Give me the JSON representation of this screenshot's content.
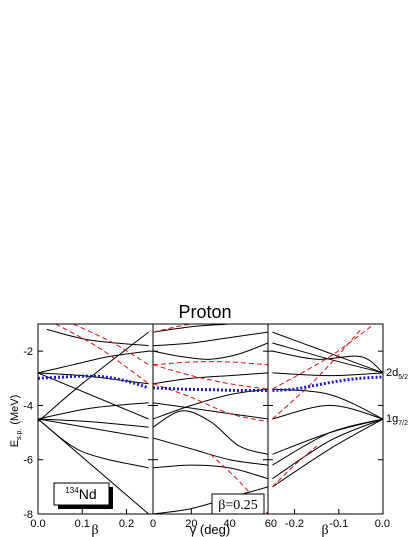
{
  "chart_data": {
    "type": "line",
    "title": "Proton",
    "ylabel_main": "E",
    "ylabel_sub": "s.p.",
    "ylabel_unit": "(MeV)",
    "ylim": [
      -8,
      -1
    ],
    "y_ticks": [
      -2,
      -4,
      -6,
      -8
    ],
    "y_tick_labels": [
      "-2",
      "-4",
      "-6",
      "-8"
    ],
    "colors": {
      "levels": "#000000",
      "alternate": "#dd1111",
      "fermi": "#1a1acc"
    },
    "panels": [
      {
        "id": "beta",
        "xlabel": "β",
        "xlim": [
          0,
          0.26
        ],
        "x_ticks": [
          0,
          0.1,
          0.2
        ],
        "x_tick_labels": [
          "0.0",
          "0.1",
          "0.2"
        ],
        "series": [
          {
            "style": "solid",
            "x": [
              0,
              0.25
            ],
            "y": [
              -4.5,
              -8
            ]
          },
          {
            "style": "solid",
            "x": [
              0,
              0.1,
              0.25
            ],
            "y": [
              -4.5,
              -5.7,
              -6.3
            ]
          },
          {
            "style": "solid",
            "x": [
              0,
              0.25
            ],
            "y": [
              -4.5,
              -5.2
            ]
          },
          {
            "style": "solid",
            "x": [
              0,
              0.12,
              0.25
            ],
            "y": [
              -4.5,
              -4.6,
              -4.8
            ]
          },
          {
            "style": "solid",
            "x": [
              0,
              0.12,
              0.25
            ],
            "y": [
              -4.5,
              -4.1,
              -3.9
            ]
          },
          {
            "style": "solid",
            "x": [
              0,
              0.25
            ],
            "y": [
              -2.8,
              -4.5
            ]
          },
          {
            "style": "solid",
            "x": [
              0,
              0.1,
              0.2,
              0.25
            ],
            "y": [
              -2.8,
              -2.9,
              -3.1,
              -3.2
            ]
          },
          {
            "style": "solid",
            "x": [
              0,
              0.08,
              0.16,
              0.25
            ],
            "y": [
              -2.8,
              -2.5,
              -2.2,
              -2.0
            ]
          },
          {
            "style": "solid",
            "x": [
              0,
              0.1,
              0.25
            ],
            "y": [
              -4.6,
              -3.2,
              -1.3
            ]
          },
          {
            "style": "solid",
            "x": [
              0.02,
              0.12,
              0.25
            ],
            "y": [
              -1.2,
              -1.6,
              -1.8
            ]
          },
          {
            "style": "solid",
            "x": [
              0.1,
              0.25
            ],
            "y": [
              -1.0,
              -0.8
            ]
          },
          {
            "style": "dashed",
            "x": [
              0.04,
              0.14,
              0.25
            ],
            "y": [
              -1.0,
              -1.9,
              -3.2
            ]
          },
          {
            "style": "dashed",
            "x": [
              0.08,
              0.17,
              0.25
            ],
            "y": [
              -1.0,
              -1.7,
              -2.5
            ]
          },
          {
            "style": "fermi",
            "x": [
              0,
              0.05,
              0.1,
              0.15,
              0.2,
              0.25
            ],
            "y": [
              -3.0,
              -2.96,
              -2.92,
              -2.95,
              -3.1,
              -3.35
            ]
          }
        ]
      },
      {
        "id": "gamma",
        "xlabel": "γ (deg)",
        "xlim": [
          0,
          60
        ],
        "x_ticks": [
          0,
          20,
          40,
          60
        ],
        "x_tick_labels": [
          "0",
          "20",
          "40",
          "60"
        ],
        "series": [
          {
            "style": "solid",
            "x": [
              0,
              20,
              40,
              60
            ],
            "y": [
              -8.0,
              -7.8,
              -7.4,
              -7.0
            ]
          },
          {
            "style": "solid",
            "x": [
              0,
              20,
              40,
              60
            ],
            "y": [
              -6.3,
              -6.2,
              -6.3,
              -6.7
            ]
          },
          {
            "style": "solid",
            "x": [
              0,
              20,
              40,
              60
            ],
            "y": [
              -5.2,
              -5.6,
              -6.0,
              -6.2
            ]
          },
          {
            "style": "solid",
            "x": [
              0,
              15,
              30,
              45,
              60
            ],
            "y": [
              -4.8,
              -4.2,
              -4.6,
              -5.5,
              -5.8
            ]
          },
          {
            "style": "solid",
            "x": [
              0,
              20,
              40,
              60
            ],
            "y": [
              -3.9,
              -4.1,
              -4.3,
              -4.5
            ]
          },
          {
            "style": "solid",
            "x": [
              0,
              20,
              40,
              60
            ],
            "y": [
              -4.5,
              -4.0,
              -3.6,
              -3.4
            ]
          },
          {
            "style": "solid",
            "x": [
              0,
              20,
              40,
              60
            ],
            "y": [
              -3.2,
              -3.0,
              -2.9,
              -2.8
            ]
          },
          {
            "style": "solid",
            "x": [
              0,
              15,
              30,
              45,
              60
            ],
            "y": [
              -2.0,
              -2.2,
              -2.3,
              -2.1,
              -1.7
            ]
          },
          {
            "style": "solid",
            "x": [
              0,
              20,
              40,
              60
            ],
            "y": [
              -1.8,
              -1.7,
              -1.5,
              -1.3
            ]
          },
          {
            "style": "solid",
            "x": [
              0,
              20,
              40,
              60
            ],
            "y": [
              -1.3,
              -1.1,
              -1.0,
              -0.9
            ]
          },
          {
            "style": "dashed",
            "x": [
              0,
              20,
              40,
              60
            ],
            "y": [
              -3.2,
              -3.7,
              -4.3,
              -4.6
            ]
          },
          {
            "style": "dashed",
            "x": [
              0,
              20,
              40,
              60
            ],
            "y": [
              -2.5,
              -2.9,
              -3.2,
              -3.4
            ]
          },
          {
            "style": "dashed",
            "x": [
              0,
              20,
              40,
              60
            ],
            "y": [
              -2.5,
              -2.4,
              -2.4,
              -2.5
            ]
          },
          {
            "style": "dashed",
            "x": [
              0,
              20,
              40,
              60
            ],
            "y": [
              -1.3,
              -1.0,
              -0.9,
              -0.8
            ]
          },
          {
            "style": "dashed",
            "x": [
              30,
              45,
              60
            ],
            "y": [
              -5.8,
              -6.8,
              -8.0
            ]
          },
          {
            "style": "fermi",
            "x": [
              0,
              15,
              30,
              45,
              60
            ],
            "y": [
              -3.35,
              -3.4,
              -3.42,
              -3.45,
              -3.45
            ]
          }
        ]
      },
      {
        "id": "beta_neg",
        "xlabel": "β",
        "xlim": [
          -0.26,
          0
        ],
        "x_ticks": [
          -0.2,
          -0.1,
          0
        ],
        "x_tick_labels": [
          "-0.2",
          "-0.1",
          "0.0"
        ],
        "series": [
          {
            "style": "solid",
            "x": [
              -0.25,
              -0.12,
              0
            ],
            "y": [
              -7.0,
              -5.6,
              -4.5
            ]
          },
          {
            "style": "solid",
            "x": [
              -0.25,
              -0.12,
              0
            ],
            "y": [
              -6.7,
              -5.3,
              -4.5
            ]
          },
          {
            "style": "solid",
            "x": [
              -0.25,
              -0.12,
              0
            ],
            "y": [
              -6.2,
              -5.0,
              -4.5
            ]
          },
          {
            "style": "solid",
            "x": [
              -0.25,
              -0.12,
              0
            ],
            "y": [
              -5.8,
              -5.0,
              -4.5
            ]
          },
          {
            "style": "solid",
            "x": [
              -0.25,
              -0.12,
              0
            ],
            "y": [
              -4.5,
              -4.0,
              -4.5
            ]
          },
          {
            "style": "solid",
            "x": [
              -0.25,
              -0.12,
              0
            ],
            "y": [
              -3.4,
              -3.6,
              -4.5
            ]
          },
          {
            "style": "solid",
            "x": [
              -0.25,
              -0.12,
              0
            ],
            "y": [
              -2.8,
              -2.9,
              -2.8
            ]
          },
          {
            "style": "solid",
            "x": [
              -0.25,
              -0.12,
              0
            ],
            "y": [
              -1.7,
              -2.3,
              -2.8
            ]
          },
          {
            "style": "solid",
            "x": [
              -0.25,
              -0.15,
              -0.05,
              0
            ],
            "y": [
              -1.3,
              -1.9,
              -2.5,
              -2.8
            ]
          },
          {
            "style": "solid",
            "x": [
              -0.25,
              -0.15,
              -0.05,
              0
            ],
            "y": [
              -2.0,
              -2.3,
              -2.2,
              -2.8
            ]
          },
          {
            "style": "dashed",
            "x": [
              -0.25,
              -0.15,
              -0.05
            ],
            "y": [
              -4.5,
              -3.0,
              -1.2
            ]
          },
          {
            "style": "dashed",
            "x": [
              -0.25,
              -0.12,
              -0.02
            ],
            "y": [
              -3.4,
              -2.2,
              -1.0
            ]
          },
          {
            "style": "dashed",
            "x": [
              -0.25,
              -0.2,
              -0.15
            ],
            "y": [
              -7.0,
              -6.2,
              -5.5
            ]
          },
          {
            "style": "fermi",
            "x": [
              -0.25,
              -0.2,
              -0.15,
              -0.1,
              -0.05,
              0
            ],
            "y": [
              -3.45,
              -3.4,
              -3.25,
              -3.1,
              -3.0,
              -2.95
            ]
          }
        ]
      }
    ],
    "annotations": {
      "nucleus_mass": "134",
      "nucleus_symbol": "Nd",
      "beta_value": "β=0.25",
      "orbital_2d_main": "2d",
      "orbital_2d_sub": "5/2",
      "orbital_2d_y": -2.8,
      "orbital_1g_main": "1g",
      "orbital_1g_sub": "7/2",
      "orbital_1g_y": -4.5
    }
  }
}
